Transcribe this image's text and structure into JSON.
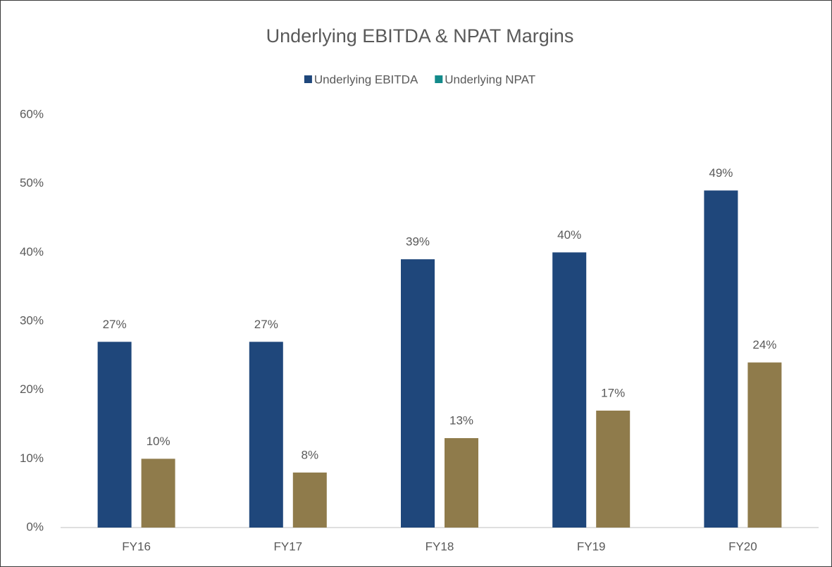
{
  "chart_data": {
    "type": "bar",
    "title": "Underlying EBITDA & NPAT Margins",
    "categories": [
      "FY16",
      "FY17",
      "FY18",
      "FY19",
      "FY20"
    ],
    "series": [
      {
        "name": "Underlying EBITDA",
        "color": "#1f477b",
        "legend_color": "#1f477b",
        "values": [
          27,
          27,
          39,
          40,
          49
        ],
        "value_labels": [
          "27%",
          "27%",
          "39%",
          "40%",
          "49%"
        ]
      },
      {
        "name": "Underlying NPAT",
        "color": "#8f7b4b",
        "legend_color": "#138a8a",
        "values": [
          10,
          8,
          13,
          17,
          24
        ],
        "value_labels": [
          "10%",
          "8%",
          "13%",
          "17%",
          "24%"
        ]
      }
    ],
    "ylim": [
      0,
      60
    ],
    "yticks": [
      {
        "value": 0,
        "label": "0%"
      },
      {
        "value": 10,
        "label": "10%"
      },
      {
        "value": 20,
        "label": "20%"
      },
      {
        "value": 30,
        "label": "30%"
      },
      {
        "value": 40,
        "label": "40%"
      },
      {
        "value": 50,
        "label": "50%"
      },
      {
        "value": 60,
        "label": "60%"
      }
    ],
    "grid": false,
    "legend": "top"
  }
}
